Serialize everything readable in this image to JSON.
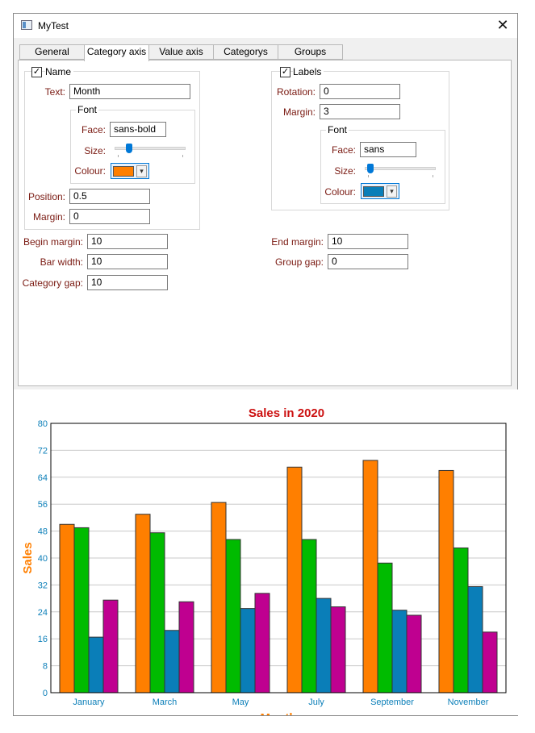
{
  "window": {
    "title": "MyTest"
  },
  "tabs": [
    {
      "label": "General",
      "active": false
    },
    {
      "label": "Category axis",
      "active": true
    },
    {
      "label": "Value axis",
      "active": false
    },
    {
      "label": "Categorys",
      "active": false
    },
    {
      "label": "Groups",
      "active": false
    }
  ],
  "name_group": {
    "checkbox_label": "Name",
    "checked": true,
    "text_label": "Text:",
    "text_value": "Month",
    "font_label": "Font",
    "face_label": "Face:",
    "face_value": "sans-bold",
    "size_label": "Size:",
    "size_fraction": 0.17,
    "colour_label": "Colour:",
    "colour_value": "#ff7f00",
    "position_label": "Position:",
    "position_value": "0.5",
    "margin_label": "Margin:",
    "margin_value": "0"
  },
  "labels_group": {
    "checkbox_label": "Labels",
    "checked": true,
    "rotation_label": "Rotation:",
    "rotation_value": "0",
    "margin_label": "Margin:",
    "margin_value": "3",
    "font_label": "Font",
    "face_label": "Face:",
    "face_value": "sans",
    "size_label": "Size:",
    "size_fraction": 0.04,
    "colour_label": "Colour:",
    "colour_value": "#0a7eb8"
  },
  "spacing": {
    "begin_margin_label": "Begin margin:",
    "begin_margin_value": "10",
    "bar_width_label": "Bar width:",
    "bar_width_value": "10",
    "category_gap_label": "Category gap:",
    "category_gap_value": "10",
    "end_margin_label": "End margin:",
    "end_margin_value": "10",
    "group_gap_label": "Group gap:",
    "group_gap_value": "0"
  },
  "chart_data": {
    "type": "bar",
    "title": "Sales in 2020",
    "xlabel": "Month",
    "ylabel": "Sales",
    "ylim": [
      0,
      80
    ],
    "yticks": [
      0,
      8,
      16,
      24,
      32,
      40,
      48,
      56,
      64,
      72,
      80
    ],
    "grid": true,
    "categories": [
      "January",
      "March",
      "May",
      "July",
      "September",
      "November"
    ],
    "series": [
      {
        "color": "#ff7f00",
        "values": [
          50,
          53,
          56.5,
          67,
          69,
          66
        ]
      },
      {
        "color": "#00bb00",
        "values": [
          49,
          47.5,
          45.5,
          45.5,
          38.5,
          43
        ]
      },
      {
        "color": "#0a7eb8",
        "values": [
          16.5,
          18.5,
          25,
          28,
          24.5,
          31.5
        ]
      },
      {
        "color": "#bf0090",
        "values": [
          27.5,
          27,
          29.5,
          25.5,
          23,
          18
        ]
      }
    ],
    "colors": {
      "title": "#cc1111",
      "axis_title": "#ff7f00",
      "tick_labels": "#0a7eb8"
    }
  }
}
